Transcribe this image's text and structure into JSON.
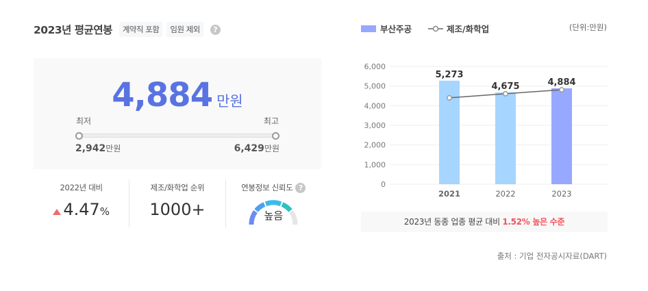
{
  "header": {
    "title": "2023년 평균연봉",
    "chips": [
      "계약직 포함",
      "임원 제외"
    ],
    "help_icon": "?"
  },
  "salary": {
    "value": "4,884",
    "unit": "만원",
    "min_label": "최저",
    "max_label": "최고",
    "min_value": "2,942",
    "max_value": "6,429",
    "value_unit": "만원"
  },
  "stats": [
    {
      "label": "2022년 대비",
      "value": "4.47",
      "suffix": "%",
      "trend": "up",
      "trend_color": "#f06a6a"
    },
    {
      "label": "제조/화학업 순위",
      "value": "1000+"
    },
    {
      "label": "연봉정보 신뢰도",
      "value": "높음",
      "help_icon": "?"
    }
  ],
  "legend": {
    "bar_label": "부산주공",
    "line_label": "제조/화학업",
    "unit": "(단위:만원)"
  },
  "chart_data": {
    "type": "bar",
    "title": "",
    "categories": [
      "2021",
      "2022",
      "2023"
    ],
    "series": [
      {
        "name": "부산주공",
        "type": "bar",
        "values": [
          5273,
          4675,
          4884
        ],
        "colors": [
          "#a6d5ff",
          "#a6d5ff",
          "#96a8ff"
        ]
      },
      {
        "name": "제조/화학업",
        "type": "line",
        "values": [
          4400,
          4610,
          4810
        ],
        "color": "#666666"
      }
    ],
    "data_labels": [
      "5,273",
      "4,675",
      "4,884"
    ],
    "y_ticks": [
      "0",
      "1,000",
      "2,000",
      "3,000",
      "4,000",
      "5,000",
      "6,000"
    ],
    "ylim": [
      0,
      6000
    ],
    "xlabel": "",
    "ylabel": "",
    "grid": true,
    "legend_position": "top"
  },
  "comparison": {
    "prefix": "2023년 동종 업종 평균 대비 ",
    "highlight": "1.52% 높은 수준"
  },
  "source": "출처 : 기업 전자공시자료(DART)"
}
